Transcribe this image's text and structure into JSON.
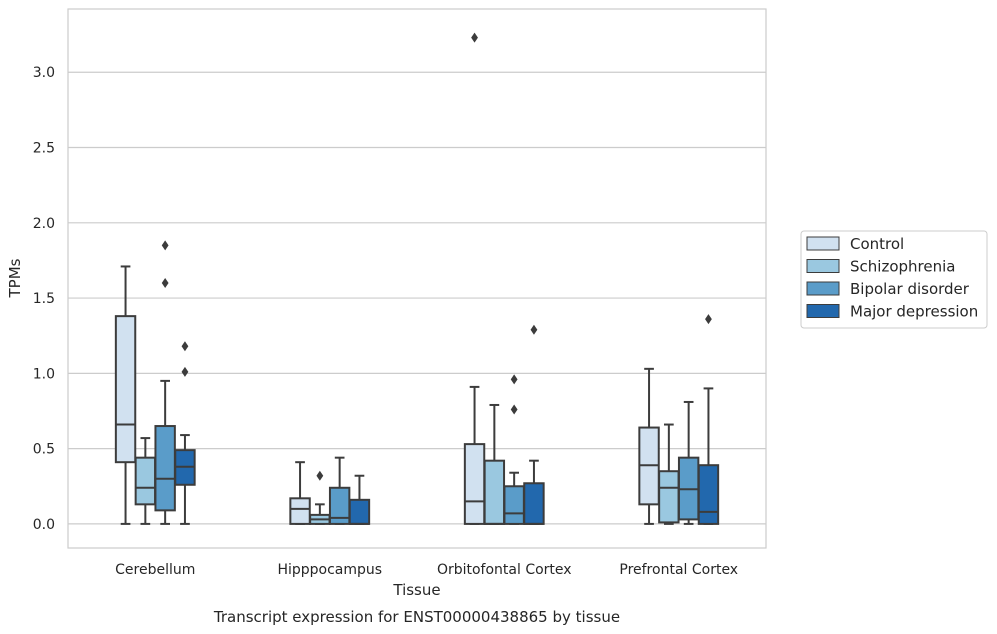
{
  "chart_data": {
    "type": "boxplot",
    "caption": "Transcript expression for ENST00000438865 by tissue",
    "xlabel": "Tissue",
    "ylabel": "TPMs",
    "ylim": [
      -0.16,
      3.42
    ],
    "yticks": [
      "0.0",
      "0.5",
      "1.0",
      "1.5",
      "2.0",
      "2.5",
      "3.0"
    ],
    "grid": "horizontal",
    "legend_position": "right",
    "categories": [
      "Cerebellum",
      "Hipppocampus",
      "Orbitofontal Cortex",
      "Prefrontal Cortex"
    ],
    "series": [
      {
        "name": "Control",
        "color": "#d1e1f0",
        "boxes": [
          {
            "whislo": 0.0,
            "q1": 0.41,
            "med": 0.66,
            "q3": 1.38,
            "whishi": 1.71,
            "fliers": []
          },
          {
            "whislo": 0.0,
            "q1": 0.0,
            "med": 0.1,
            "q3": 0.17,
            "whishi": 0.41,
            "fliers": []
          },
          {
            "whislo": 0.0,
            "q1": 0.0,
            "med": 0.15,
            "q3": 0.53,
            "whishi": 0.91,
            "fliers": [
              3.23
            ]
          },
          {
            "whislo": 0.0,
            "q1": 0.13,
            "med": 0.39,
            "q3": 0.64,
            "whishi": 1.03,
            "fliers": []
          }
        ]
      },
      {
        "name": "Schizophrenia",
        "color": "#9ac8e0",
        "boxes": [
          {
            "whislo": 0.0,
            "q1": 0.13,
            "med": 0.24,
            "q3": 0.44,
            "whishi": 0.57,
            "fliers": []
          },
          {
            "whislo": 0.0,
            "q1": 0.0,
            "med": 0.03,
            "q3": 0.06,
            "whishi": 0.13,
            "fliers": [
              0.32
            ]
          },
          {
            "whislo": 0.0,
            "q1": 0.0,
            "med": 0.0,
            "q3": 0.42,
            "whishi": 0.79,
            "fliers": []
          },
          {
            "whislo": 0.0,
            "q1": 0.01,
            "med": 0.24,
            "q3": 0.35,
            "whishi": 0.66,
            "fliers": []
          }
        ]
      },
      {
        "name": "Bipolar disorder",
        "color": "#5a9cc9",
        "boxes": [
          {
            "whislo": 0.0,
            "q1": 0.09,
            "med": 0.3,
            "q3": 0.65,
            "whishi": 0.95,
            "fliers": [
              1.6,
              1.85
            ]
          },
          {
            "whislo": 0.0,
            "q1": 0.0,
            "med": 0.04,
            "q3": 0.24,
            "whishi": 0.44,
            "fliers": []
          },
          {
            "whislo": 0.0,
            "q1": 0.0,
            "med": 0.07,
            "q3": 0.25,
            "whishi": 0.34,
            "fliers": [
              0.76,
              0.96
            ]
          },
          {
            "whislo": 0.0,
            "q1": 0.03,
            "med": 0.23,
            "q3": 0.44,
            "whishi": 0.81,
            "fliers": []
          }
        ]
      },
      {
        "name": "Major depression",
        "color": "#2268ad",
        "boxes": [
          {
            "whislo": 0.0,
            "q1": 0.26,
            "med": 0.38,
            "q3": 0.49,
            "whishi": 0.59,
            "fliers": [
              1.01,
              1.18
            ]
          },
          {
            "whislo": 0.0,
            "q1": 0.0,
            "med": 0.0,
            "q3": 0.16,
            "whishi": 0.32,
            "fliers": []
          },
          {
            "whislo": 0.0,
            "q1": 0.0,
            "med": 0.0,
            "q3": 0.27,
            "whishi": 0.42,
            "fliers": [
              1.29
            ]
          },
          {
            "whislo": 0.0,
            "q1": 0.0,
            "med": 0.08,
            "q3": 0.39,
            "whishi": 0.9,
            "fliers": [
              1.36
            ]
          }
        ]
      }
    ]
  }
}
